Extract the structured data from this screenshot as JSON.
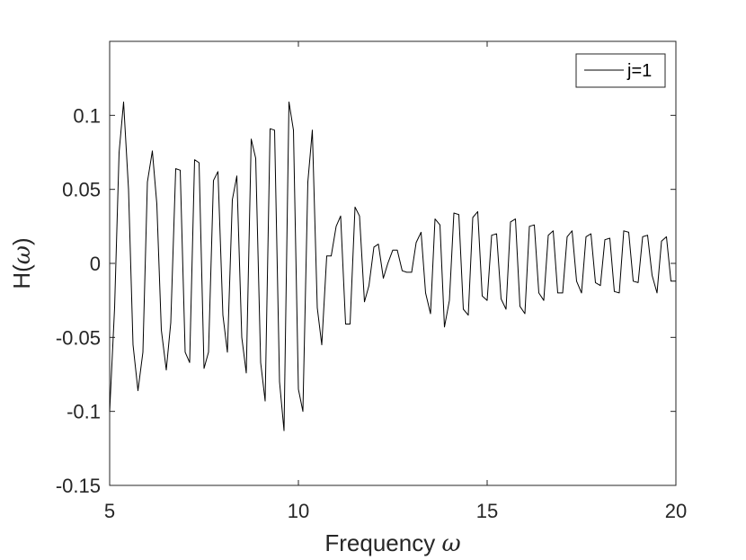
{
  "chart_data": {
    "type": "line",
    "xlabel": "Frequency ",
    "xlabel_symbol": "ω",
    "ylabel": "H(",
    "ylabel_symbol": "ω",
    "ylabel_close": ")",
    "xlim": [
      5,
      20
    ],
    "ylim": [
      -0.15,
      0.15
    ],
    "x_ticks": [
      5,
      10,
      15,
      20
    ],
    "x_tick_labels": [
      "5",
      "10",
      "15",
      "20"
    ],
    "y_ticks": [
      -0.15,
      -0.1,
      -0.05,
      0,
      0.05,
      0.1
    ],
    "y_tick_labels": [
      "-0.15",
      "-0.1",
      "-0.05",
      "0",
      "0.05",
      "0.1"
    ],
    "grid": false,
    "legend_position": "top-right",
    "colors": {
      "line": "#000000",
      "axes": "#262626"
    },
    "series": [
      {
        "name": "j=1",
        "x": [
          5.0,
          5.13,
          5.25,
          5.37,
          5.5,
          5.62,
          5.75,
          5.88,
          6.0,
          6.13,
          6.25,
          6.37,
          6.5,
          6.62,
          6.75,
          6.87,
          7.0,
          7.12,
          7.25,
          7.37,
          7.5,
          7.62,
          7.75,
          7.87,
          8.0,
          8.12,
          8.25,
          8.37,
          8.5,
          8.62,
          8.75,
          8.87,
          9.0,
          9.12,
          9.25,
          9.37,
          9.5,
          9.62,
          9.75,
          9.87,
          10.0,
          10.12,
          10.25,
          10.37,
          10.5,
          10.62,
          10.75,
          10.87,
          11.0,
          11.12,
          11.25,
          11.37,
          11.5,
          11.62,
          11.75,
          11.87,
          12.0,
          12.12,
          12.25,
          12.37,
          12.5,
          12.62,
          12.75,
          12.87,
          13.0,
          13.12,
          13.25,
          13.37,
          13.5,
          13.62,
          13.75,
          13.87,
          14.0,
          14.12,
          14.25,
          14.37,
          14.5,
          14.62,
          14.75,
          14.87,
          15.0,
          15.12,
          15.25,
          15.37,
          15.5,
          15.62,
          15.75,
          15.87,
          16.0,
          16.12,
          16.25,
          16.37,
          16.5,
          16.62,
          16.75,
          16.87,
          17.0,
          17.12,
          17.25,
          17.37,
          17.5,
          17.62,
          17.75,
          17.87,
          18.0,
          18.12,
          18.25,
          18.37,
          18.5,
          18.62,
          18.75,
          18.87,
          19.0,
          19.12,
          19.25,
          19.37,
          19.5,
          19.62,
          19.75,
          19.87,
          20.0
        ],
        "values": [
          -0.1,
          -0.03,
          0.075,
          0.109,
          0.05,
          -0.055,
          -0.086,
          -0.06,
          0.055,
          0.076,
          0.04,
          -0.045,
          -0.072,
          -0.04,
          0.064,
          0.063,
          -0.06,
          -0.067,
          0.07,
          0.068,
          -0.071,
          -0.06,
          0.056,
          0.062,
          -0.035,
          -0.06,
          0.043,
          0.059,
          -0.05,
          -0.074,
          0.084,
          0.071,
          -0.067,
          -0.093,
          0.091,
          0.09,
          -0.08,
          -0.113,
          0.109,
          0.09,
          -0.085,
          -0.1,
          0.055,
          0.09,
          -0.03,
          -0.055,
          0.005,
          0.005,
          0.025,
          0.032,
          -0.041,
          -0.041,
          0.038,
          0.032,
          -0.026,
          -0.015,
          0.011,
          0.013,
          -0.01,
          0.0,
          0.009,
          0.009,
          -0.005,
          -0.006,
          -0.006,
          0.014,
          0.021,
          -0.02,
          -0.034,
          0.03,
          0.026,
          -0.043,
          -0.025,
          0.034,
          0.033,
          -0.031,
          -0.035,
          0.031,
          0.035,
          -0.022,
          -0.025,
          0.019,
          0.02,
          -0.024,
          -0.031,
          0.028,
          0.03,
          -0.029,
          -0.034,
          0.025,
          0.026,
          -0.02,
          -0.025,
          0.019,
          0.022,
          -0.02,
          -0.02,
          0.018,
          0.022,
          -0.012,
          -0.02,
          0.018,
          0.02,
          -0.013,
          -0.015,
          0.016,
          0.017,
          -0.019,
          -0.02,
          0.022,
          0.021,
          -0.012,
          -0.013,
          0.018,
          0.019,
          -0.008,
          -0.02,
          0.015,
          0.018,
          -0.012,
          -0.012
        ]
      }
    ]
  }
}
